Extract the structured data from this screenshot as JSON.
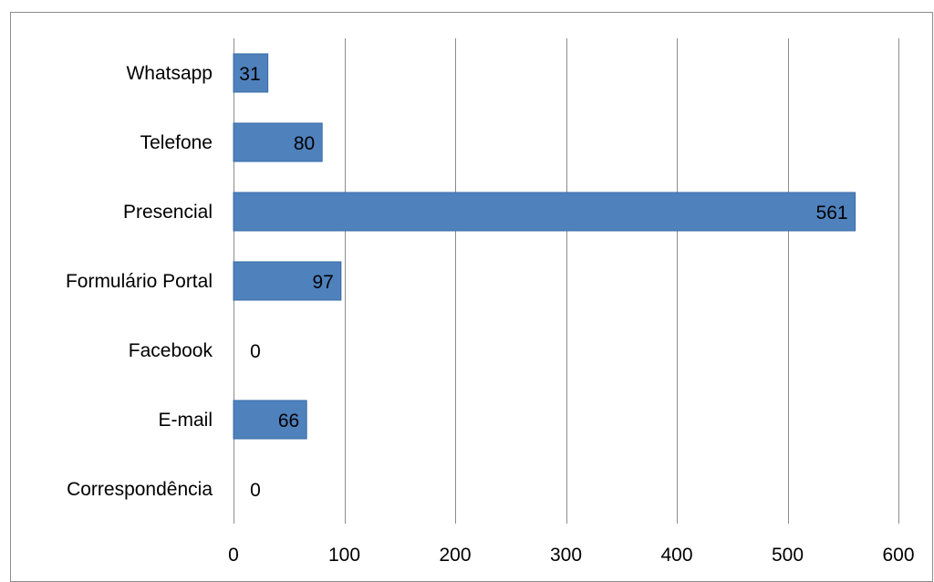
{
  "chart_data": {
    "type": "bar",
    "orientation": "horizontal",
    "categories": [
      "Whatsapp",
      "Telefone",
      "Presencial",
      "Formulário Portal",
      "Facebook",
      "E-mail",
      "Correspondência"
    ],
    "values": [
      31,
      80,
      561,
      97,
      0,
      66,
      0
    ],
    "title": "",
    "xlabel": "",
    "ylabel": "",
    "xlim": [
      0,
      600
    ],
    "xticks": [
      0,
      100,
      200,
      300,
      400,
      500,
      600
    ],
    "gridlines": "vertical",
    "legend": "none",
    "data_labels": true,
    "bar_color": "#4F81BD",
    "bar_border_color": "#3A6BA5",
    "grid_color": "#8c8c8c"
  }
}
